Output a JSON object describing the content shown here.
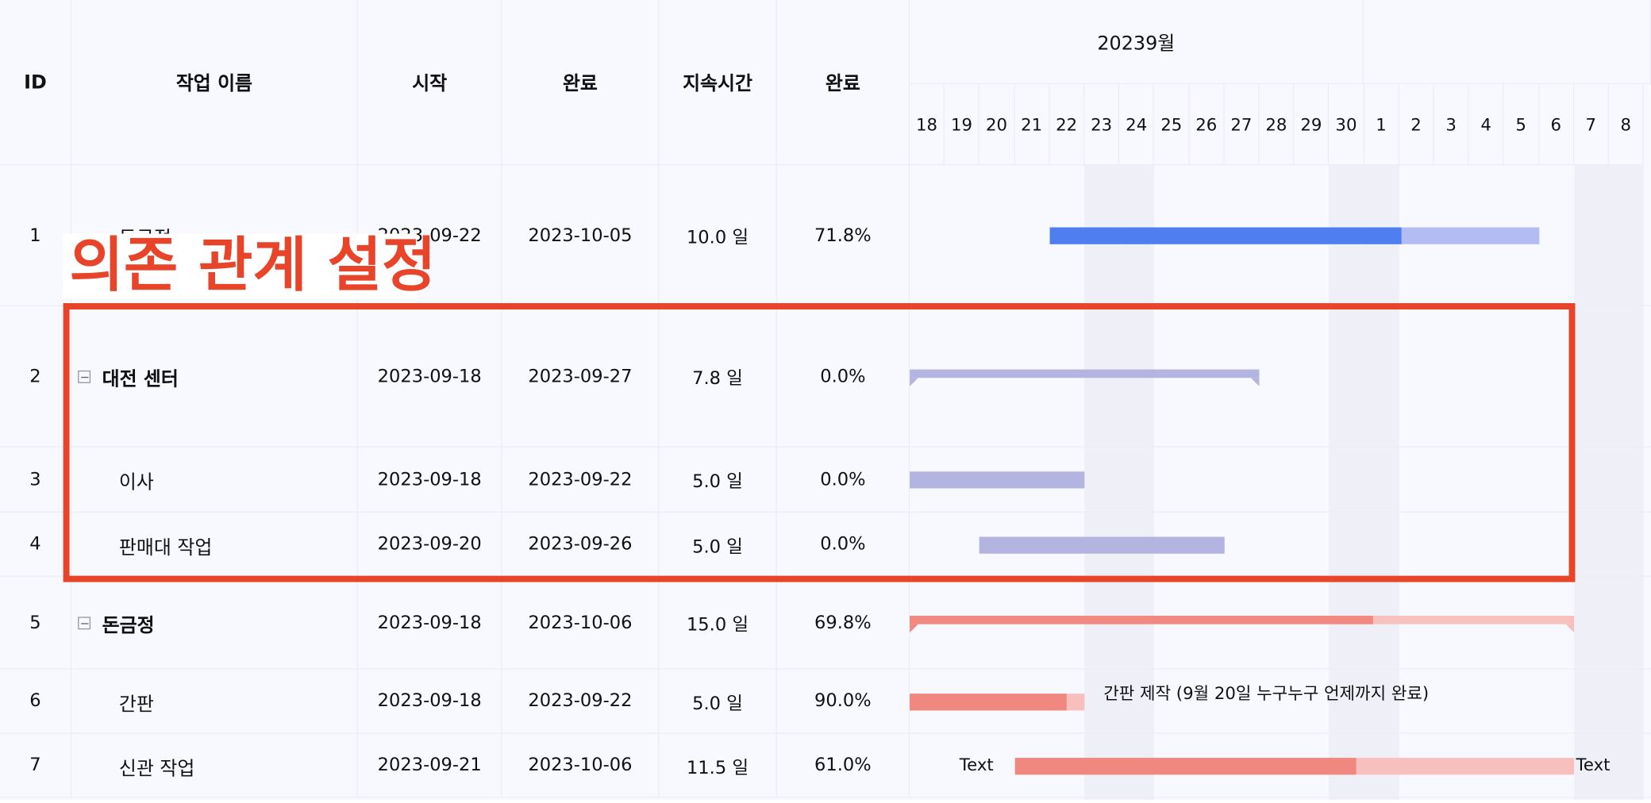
{
  "table": {
    "headers": [
      "ID",
      "작업 이름",
      "시작",
      "완료",
      "지속시간",
      "완료"
    ],
    "rows": [
      {
        "id": 1,
        "name": "돈금점",
        "start": "2023-09-22",
        "end": "2023-10-05",
        "duration": "10.0 일",
        "done": "71.8%",
        "group": false,
        "color": "#4f7ef0",
        "track_color": "#b3bcf3"
      },
      {
        "id": 2,
        "name": "대전 센터",
        "start": "2023-09-18",
        "end": "2023-09-27",
        "duration": "7.8 일",
        "done": "0.0%",
        "group": true,
        "color": "#9ea2d8",
        "track_color": "#b3b5e0"
      },
      {
        "id": 3,
        "name": "이사",
        "start": "2023-09-18",
        "end": "2023-09-22",
        "duration": "5.0 일",
        "done": "0.0%",
        "group": false,
        "color": "#9ea2d8",
        "track_color": "#b3b5e0"
      },
      {
        "id": 4,
        "name": "판매대 작업",
        "start": "2023-09-20",
        "end": "2023-09-26",
        "duration": "5.0 일",
        "done": "0.0%",
        "group": false,
        "color": "#9ea2d8",
        "track_color": "#b3b5e0"
      },
      {
        "id": 5,
        "name": "돈금정",
        "start": "2023-09-18",
        "end": "2023-10-06",
        "duration": "15.0 일",
        "done": "69.8%",
        "group": true,
        "color": "#f08880",
        "track_color": "#f8c0bd"
      },
      {
        "id": 6,
        "name": "간판",
        "start": "2023-09-18",
        "end": "2023-09-22",
        "duration": "5.0 일",
        "done": "90.0%",
        "group": false,
        "color": "#f08880",
        "track_color": "#f8c0bd",
        "note": "간판 제작 (9월 20일 누구누구 언제까지 완료)"
      },
      {
        "id": 7,
        "name": "신관 작업",
        "start": "2023-09-21",
        "end": "2023-10-06",
        "duration": "11.5 일",
        "done": "61.0%",
        "group": false,
        "color": "#f08880",
        "track_color": "#f8c0bd",
        "left_label": "Text",
        "right_label": "Text"
      }
    ]
  },
  "gantt": {
    "month": "20239월",
    "days": [
      18,
      19,
      20,
      21,
      22,
      23,
      24,
      25,
      26,
      27,
      28,
      29,
      30,
      1,
      2,
      3,
      4,
      5,
      6,
      7,
      8
    ]
  },
  "overlay": {
    "label": "의존 관계 설정"
  }
}
